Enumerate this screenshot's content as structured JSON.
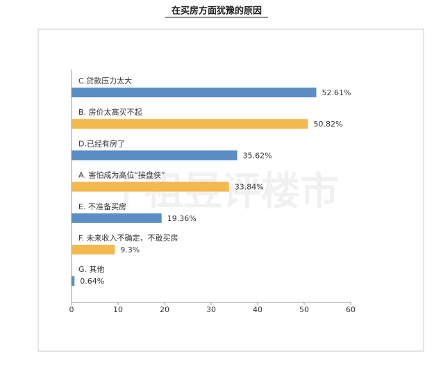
{
  "chart_data": {
    "type": "hbar",
    "title": "在买房方面犹豫的原因",
    "watermark": "丁祖昱评楼市",
    "categories": [
      "C.贷款压力太大",
      "B. 房价太高买不起",
      "D.已经有房了",
      "A. 害怕成为高位“接盘侠”",
      "E. 不准备买房",
      "F. 未来收入不确定，不敢买房",
      "G. 其他"
    ],
    "values": [
      52.61,
      50.82,
      35.62,
      33.84,
      19.36,
      9.3,
      0.64
    ],
    "value_labels": [
      "52.61%",
      "50.82%",
      "35.62%",
      "33.84%",
      "19.36%",
      "9.3%",
      "0.64%"
    ],
    "colors": [
      "#5b8ec4",
      "#f2b94f",
      "#5b8ec4",
      "#f2b94f",
      "#5b8ec4",
      "#f2b94f",
      "#5b8ec4"
    ],
    "xlim": [
      0,
      60
    ],
    "xticks": [
      0,
      10,
      20,
      30,
      40,
      50,
      60
    ]
  }
}
